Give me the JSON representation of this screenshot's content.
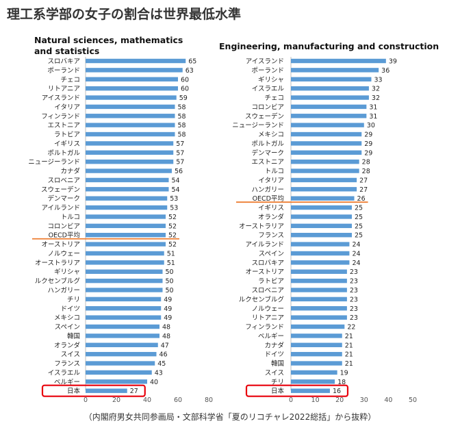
{
  "page": {
    "title": "理工系学部の女子の割合は世界最低水準",
    "caption": "（内閣府男女共同参画局・文部科学省「夏のリコチャレ2022総括」から抜粋）"
  },
  "colors": {
    "bar": "#5b9bd5",
    "oecd_line": "#ed7d31",
    "highlight_box": "#e8000b",
    "text": "#222222",
    "axis": "#bfbfbf"
  },
  "chart_data": [
    {
      "type": "bar",
      "orientation": "horizontal",
      "title_lines": [
        "Natural sciences, mathematics",
        "and statistics"
      ],
      "xlim": [
        0,
        80
      ],
      "xticks": [
        0,
        20,
        40,
        60,
        80
      ],
      "reference_line": {
        "label": "OECD平均",
        "value": 52
      },
      "highlight": "日本",
      "categories": [
        "スロバキア",
        "ポーランド",
        "チェコ",
        "リトアニア",
        "アイスランド",
        "イタリア",
        "フィンランド",
        "エストニア",
        "ラトビア",
        "イギリス",
        "ポルトガル",
        "ニュージーランド",
        "カナダ",
        "スロベニア",
        "スウェーデン",
        "デンマーク",
        "アイルランド",
        "トルコ",
        "コロンビア",
        "OECD平均",
        "オーストリア",
        "ノルウェー",
        "オーストラリア",
        "ギリシャ",
        "ルクセンブルグ",
        "ハンガリー",
        "チリ",
        "ドイツ",
        "メキシコ",
        "スペイン",
        "韓国",
        "オランダ",
        "スイス",
        "フランス",
        "イスラエル",
        "ベルギー",
        "日本"
      ],
      "values": [
        65,
        63,
        60,
        60,
        59,
        58,
        58,
        58,
        58,
        57,
        57,
        57,
        56,
        54,
        54,
        53,
        53,
        52,
        52,
        52,
        52,
        51,
        51,
        50,
        50,
        50,
        49,
        49,
        49,
        48,
        48,
        47,
        46,
        45,
        43,
        40,
        27
      ]
    },
    {
      "type": "bar",
      "orientation": "horizontal",
      "title_lines": [
        "Engineering, manufacturing and construction"
      ],
      "xlim": [
        0,
        50
      ],
      "xticks": [
        0,
        10,
        20,
        30,
        40,
        50
      ],
      "reference_line": {
        "label": "OECD平均",
        "value": 26
      },
      "highlight": "日本",
      "categories": [
        "アイスランド",
        "ポーランド",
        "ギリシャ",
        "イスラエル",
        "チェコ",
        "コロンビア",
        "スウェーデン",
        "ニュージーランド",
        "メキシコ",
        "ポルトガル",
        "デンマーク",
        "エストニア",
        "トルコ",
        "イタリア",
        "ハンガリー",
        "OECD平均",
        "イギリス",
        "オランダ",
        "オーストラリア",
        "フランス",
        "アイルランド",
        "スペイン",
        "スロバキア",
        "オーストリア",
        "ラトビア",
        "スロベニア",
        "ルクセンブルグ",
        "ノルウェー",
        "リトアニア",
        "フィンランド",
        "ベルギー",
        "カナダ",
        "ドイツ",
        "韓国",
        "スイス",
        "チリ",
        "日本"
      ],
      "values": [
        39,
        36,
        33,
        32,
        32,
        31,
        31,
        30,
        29,
        29,
        29,
        28,
        28,
        27,
        27,
        26,
        25,
        25,
        25,
        25,
        24,
        24,
        24,
        23,
        23,
        23,
        23,
        23,
        23,
        22,
        21,
        21,
        21,
        21,
        19,
        18,
        16
      ]
    }
  ]
}
